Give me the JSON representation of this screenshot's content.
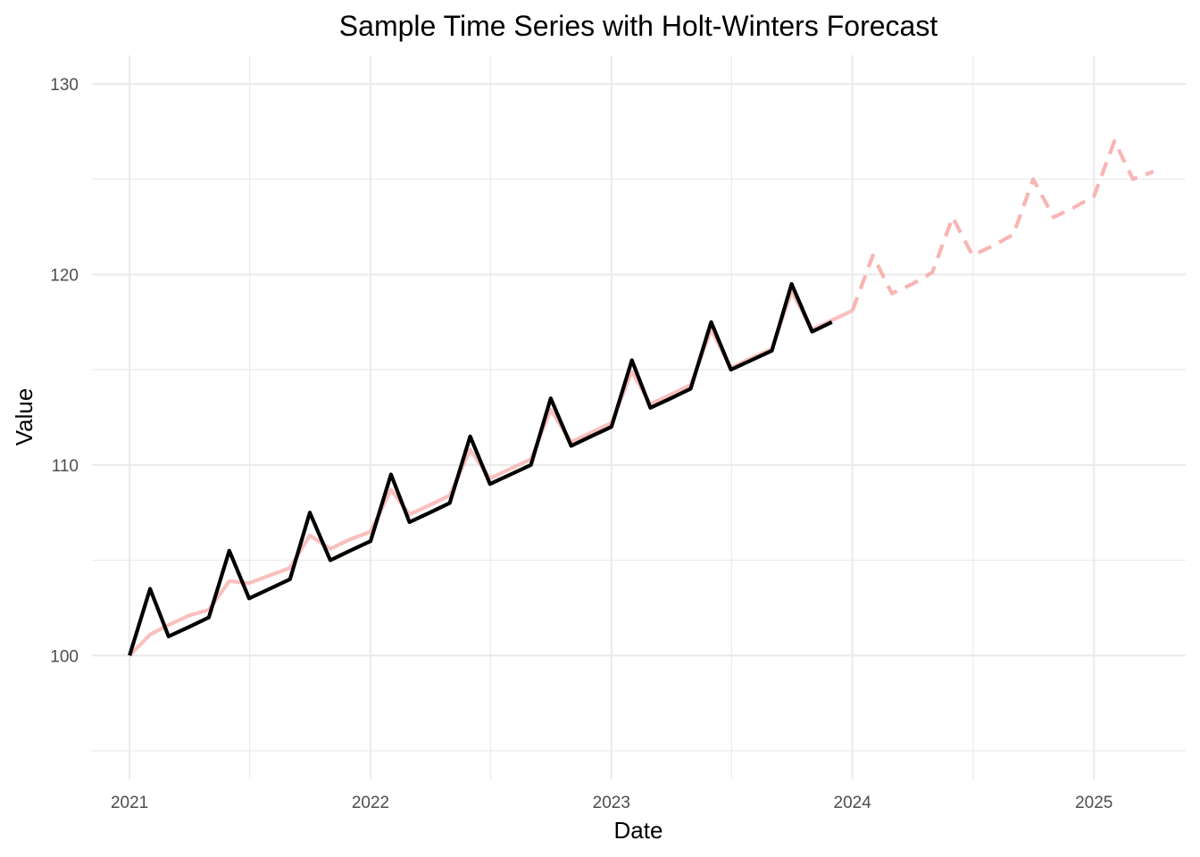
{
  "chart_data": {
    "type": "line",
    "title": "Sample Time Series with Holt-Winters Forecast",
    "xlabel": "Date",
    "ylabel": "Value",
    "xlim": [
      "2020-11-05",
      "2025-05-20"
    ],
    "ylim": [
      93.5,
      131.5
    ],
    "x_ticks": [
      "2021",
      "2022",
      "2023",
      "2024",
      "2025"
    ],
    "y_ticks": [
      "100",
      "110",
      "120",
      "130"
    ],
    "grid": true,
    "legend": "none",
    "colors": {
      "observed": "#000000",
      "fitted": "#f8b5b2",
      "forecast": "#f8b5b2",
      "grid": "#ebebeb"
    },
    "series": [
      {
        "style": "solid",
        "x": [
          "2021-01",
          "2021-02",
          "2021-03",
          "2021-04",
          "2021-05",
          "2021-06",
          "2021-07",
          "2021-08",
          "2021-09",
          "2021-10",
          "2021-11",
          "2021-12",
          "2022-01",
          "2022-02",
          "2022-03",
          "2022-04",
          "2022-05",
          "2022-06",
          "2022-07",
          "2022-08",
          "2022-09",
          "2022-10",
          "2022-11",
          "2022-12",
          "2023-01",
          "2023-02",
          "2023-03",
          "2023-04",
          "2023-05",
          "2023-06",
          "2023-07",
          "2023-08",
          "2023-09",
          "2023-10",
          "2023-11",
          "2023-12"
        ],
        "values": [
          100,
          103.5,
          101,
          101.5,
          102,
          105.5,
          103,
          103.5,
          104,
          107.5,
          105,
          105.5,
          106,
          109.5,
          107,
          107.5,
          108,
          111.5,
          109,
          109.5,
          110,
          113.5,
          111,
          111.5,
          112,
          115.5,
          113,
          113.5,
          114,
          117.5,
          115,
          115.5,
          116,
          119.5,
          117,
          117.5
        ]
      },
      {
        "style": "solid",
        "x": [
          "2021-01",
          "2021-02",
          "2021-03",
          "2021-04",
          "2021-05",
          "2021-06",
          "2021-07",
          "2021-08",
          "2021-09",
          "2021-10",
          "2021-11",
          "2021-12",
          "2022-01",
          "2022-02",
          "2022-03",
          "2022-04",
          "2022-05",
          "2022-06",
          "2022-07",
          "2022-08",
          "2022-09",
          "2022-10",
          "2022-11",
          "2022-12",
          "2023-01",
          "2023-02",
          "2023-03",
          "2023-04",
          "2023-05",
          "2023-06",
          "2023-07",
          "2023-08",
          "2023-09",
          "2023-10",
          "2023-11",
          "2023-12",
          "2024-01"
        ],
        "values": [
          100,
          101.1,
          101.6,
          102.1,
          102.4,
          103.9,
          103.8,
          104.2,
          104.6,
          106.3,
          105.6,
          106.1,
          106.5,
          108.7,
          107.4,
          107.9,
          108.4,
          110.8,
          109.3,
          109.8,
          110.3,
          112.9,
          111.2,
          111.7,
          112.2,
          114.9,
          113.2,
          113.7,
          114.2,
          117.1,
          115.1,
          115.6,
          116.1,
          119.1,
          117.1,
          117.6,
          118.1
        ]
      },
      {
        "style": "dashed",
        "x": [
          "2024-01",
          "2024-02",
          "2024-03",
          "2024-04",
          "2024-05",
          "2024-06",
          "2024-07",
          "2024-08",
          "2024-09",
          "2024-10",
          "2024-11",
          "2024-12",
          "2025-01",
          "2025-02",
          "2025-03",
          "2025-04"
        ],
        "values": [
          118.1,
          121,
          119,
          119.5,
          120.1,
          123,
          121,
          121.5,
          122.1,
          125,
          123,
          123.5,
          124.1,
          127,
          125,
          125.4
        ]
      }
    ]
  }
}
